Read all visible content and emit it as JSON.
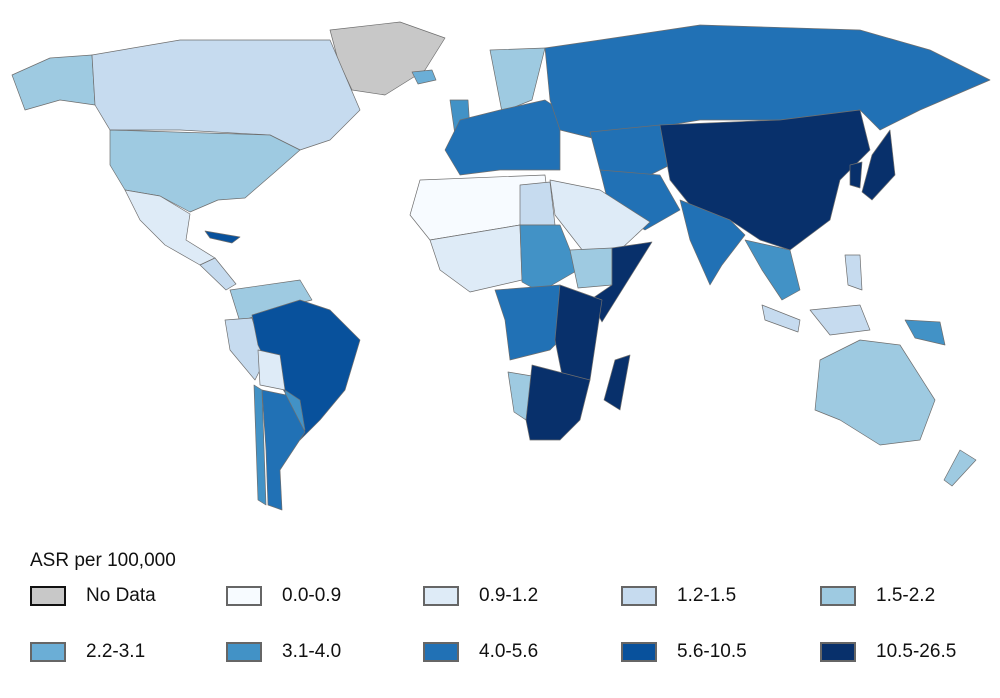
{
  "legend": {
    "title": "ASR per 100,000",
    "items": [
      {
        "label": "No Data",
        "color": "#c8c8c8"
      },
      {
        "label": "0.0-0.9",
        "color": "#f7fbff"
      },
      {
        "label": "0.9-1.2",
        "color": "#deebf7"
      },
      {
        "label": "1.2-1.5",
        "color": "#c6dbef"
      },
      {
        "label": "1.5-2.2",
        "color": "#9ecae1"
      },
      {
        "label": "2.2-3.1",
        "color": "#6baed6"
      },
      {
        "label": "3.1-4.0",
        "color": "#4292c6"
      },
      {
        "label": "4.0-5.6",
        "color": "#2171b5"
      },
      {
        "label": "5.6-10.5",
        "color": "#08519c"
      },
      {
        "label": "10.5-26.5",
        "color": "#08306b"
      }
    ]
  }
}
